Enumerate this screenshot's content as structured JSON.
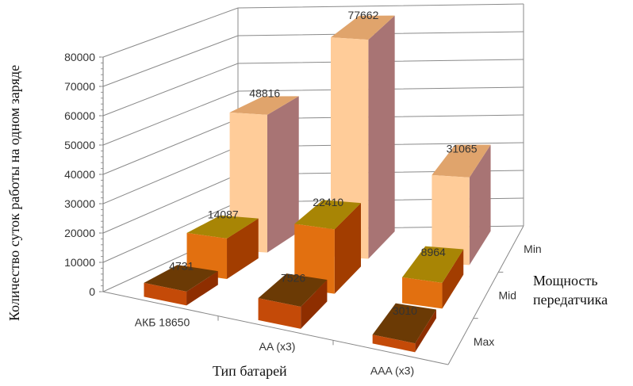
{
  "chart_data": {
    "type": "bar",
    "subtype": "3d-column",
    "title": "",
    "xlabel": "Тип батарей",
    "ylabel": "Количество суток работы на одном заряде",
    "zlabel": "Мощность передатчика",
    "categories": [
      "АКБ 18650",
      "AA (x3)",
      "AAA (x3)"
    ],
    "depth_categories": [
      "Max",
      "Mid",
      "Min"
    ],
    "ylim": [
      0,
      80000
    ],
    "yticks": [
      0,
      10000,
      20000,
      30000,
      40000,
      50000,
      60000,
      70000,
      80000
    ],
    "grid": true,
    "legend": "none",
    "data_labels": true,
    "series": [
      {
        "name": "Max",
        "values": [
          4731,
          7526,
          3010
        ],
        "colors": {
          "front": "#c44a08",
          "top": "#6b3a05",
          "side": "#8e2e00"
        }
      },
      {
        "name": "Mid",
        "values": [
          14087,
          22410,
          8964
        ],
        "colors": {
          "front": "#e27010",
          "top": "#a88505",
          "side": "#a23d00"
        }
      },
      {
        "name": "Min",
        "values": [
          48816,
          77662,
          31065
        ],
        "colors": {
          "front": "#ffcc99",
          "top": "#e0a46c",
          "side": "#a87474"
        }
      }
    ]
  }
}
